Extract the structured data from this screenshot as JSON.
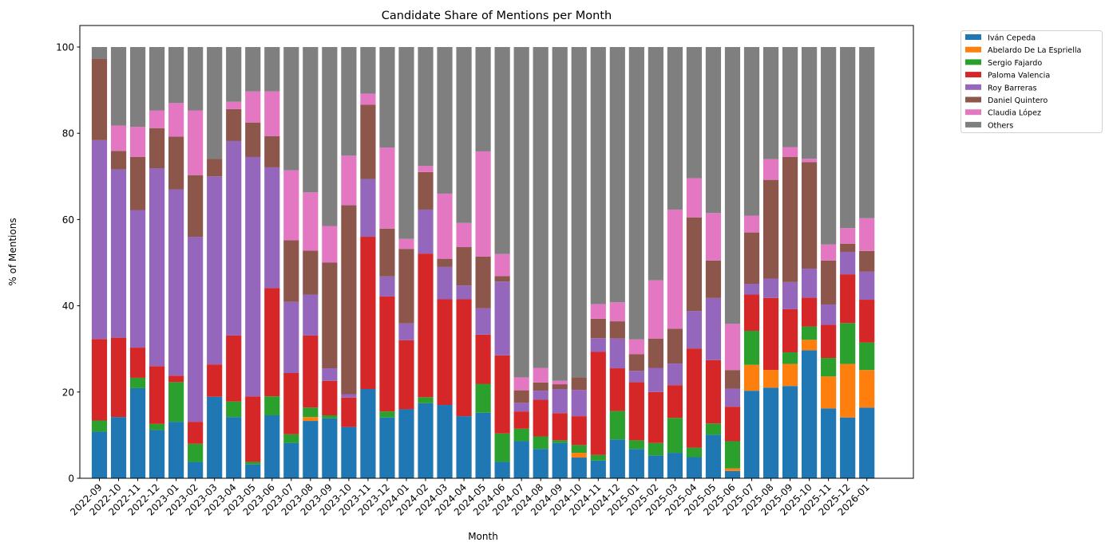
{
  "chart_data": {
    "type": "bar",
    "stacked": true,
    "title": "Candidate Share of Mentions per Month",
    "xlabel": "Month",
    "ylabel": "% of Mentions",
    "ylim": [
      0,
      105
    ],
    "yticks": [
      0,
      20,
      40,
      60,
      80,
      100
    ],
    "grid": false,
    "legend_position": "outside-top-right",
    "categories": [
      "2022-09",
      "2022-10",
      "2022-11",
      "2022-12",
      "2023-01",
      "2023-02",
      "2023-03",
      "2023-04",
      "2023-05",
      "2023-06",
      "2023-07",
      "2023-08",
      "2023-09",
      "2023-10",
      "2023-11",
      "2023-12",
      "2024-01",
      "2024-02",
      "2024-03",
      "2024-04",
      "2024-05",
      "2024-06",
      "2024-07",
      "2024-08",
      "2024-09",
      "2024-10",
      "2024-11",
      "2024-12",
      "2025-01",
      "2025-02",
      "2025-03",
      "2025-04",
      "2025-05",
      "2025-06",
      "2025-07",
      "2025-08",
      "2025-09",
      "2025-10",
      "2025-11",
      "2025-12",
      "2026-01"
    ],
    "series": [
      {
        "name": "Iván Cepeda",
        "color": "#1f77b4",
        "values": [
          10.8,
          14.2,
          20.9,
          11.2,
          13.1,
          3.8,
          18.9,
          14.2,
          3.2,
          14.6,
          8.2,
          13.3,
          13.9,
          11.9,
          20.7,
          14.1,
          16.0,
          17.4,
          17.0,
          14.4,
          15.2,
          3.8,
          8.6,
          6.8,
          8.2,
          4.8,
          4.1,
          9.0,
          6.8,
          5.3,
          5.9,
          4.9,
          10.1,
          1.7,
          20.3,
          21.0,
          21.4,
          29.7,
          16.2,
          14.1,
          16.4
        ]
      },
      {
        "name": "Abelardo De La Espriella",
        "color": "#ff7f0e",
        "values": [
          0,
          0,
          0,
          0,
          0,
          0,
          0,
          0,
          0,
          0,
          0,
          0.9,
          0,
          0,
          0,
          0,
          0,
          0,
          0,
          0,
          0,
          0,
          0,
          0,
          0,
          1.1,
          0,
          0,
          0,
          0,
          0,
          0,
          0,
          0.6,
          6.0,
          4.1,
          5.1,
          2.4,
          7.4,
          12.4,
          8.7
        ]
      },
      {
        "name": "Sergio Fajardo",
        "color": "#2ca02c",
        "values": [
          2.6,
          0,
          2.4,
          1.4,
          9.2,
          4.2,
          0,
          3.6,
          0.6,
          4.4,
          2.0,
          2.2,
          0.7,
          0,
          0,
          1.4,
          0,
          1.4,
          0,
          0,
          6.7,
          6.6,
          2.9,
          2.9,
          0.6,
          1.8,
          1.3,
          6.6,
          2.0,
          2.9,
          8.1,
          2.2,
          2.6,
          6.3,
          7.9,
          0,
          2.7,
          3.1,
          4.3,
          9.5,
          6.4
        ]
      },
      {
        "name": "Paloma Valencia",
        "color": "#d62728",
        "values": [
          18.9,
          18.4,
          7.0,
          13.4,
          1.5,
          5.1,
          7.5,
          15.3,
          15.2,
          25.1,
          14.2,
          16.7,
          8.0,
          6.8,
          35.3,
          26.7,
          16.0,
          33.3,
          24.5,
          27.1,
          11.4,
          18.1,
          4.0,
          8.5,
          6.3,
          6.7,
          23.9,
          9.9,
          13.5,
          11.8,
          7.6,
          23.0,
          14.7,
          8.0,
          8.4,
          16.7,
          10.0,
          6.7,
          7.7,
          11.3,
          9.9
        ]
      },
      {
        "name": "Roy Barreras",
        "color": "#9467bd",
        "values": [
          46.1,
          39.0,
          31.9,
          45.9,
          43.2,
          42.9,
          43.6,
          45.1,
          55.5,
          28.0,
          16.5,
          9.5,
          2.9,
          0.8,
          13.4,
          4.6,
          3.9,
          10.2,
          7.5,
          3.2,
          6.1,
          17.1,
          2.0,
          2.1,
          5.6,
          6.1,
          3.2,
          6.9,
          2.6,
          5.6,
          5.0,
          8.7,
          14.4,
          4.2,
          2.5,
          4.5,
          6.3,
          6.7,
          4.7,
          5.2,
          6.5
        ]
      },
      {
        "name": "Daniel Quintero",
        "color": "#8c564b",
        "values": [
          18.9,
          4.3,
          12.3,
          9.3,
          12.2,
          14.3,
          4.1,
          7.4,
          8.0,
          7.2,
          14.3,
          10.2,
          24.5,
          43.8,
          17.2,
          11.1,
          17.3,
          8.7,
          1.9,
          8.9,
          12.0,
          1.3,
          2.9,
          1.9,
          1.1,
          2.9,
          4.5,
          4.0,
          3.9,
          6.8,
          8.1,
          21.7,
          8.7,
          4.3,
          11.9,
          22.9,
          29.0,
          24.7,
          10.2,
          1.9,
          4.8
        ]
      },
      {
        "name": "Claudia López",
        "color": "#e377c2",
        "values": [
          0,
          5.9,
          7.0,
          4.1,
          7.8,
          15.0,
          0,
          1.7,
          7.2,
          10.4,
          16.2,
          13.5,
          8.5,
          11.5,
          2.6,
          18.8,
          2.3,
          1.4,
          15.1,
          5.6,
          24.4,
          5.1,
          3.0,
          3.4,
          0.8,
          0,
          3.4,
          4.4,
          3.4,
          13.5,
          27.6,
          9.1,
          11.0,
          10.7,
          3.9,
          4.8,
          2.3,
          0.8,
          3.7,
          3.6,
          7.6
        ]
      },
      {
        "name": "Others",
        "color": "#7f7f7f",
        "values": [
          2.7,
          18.2,
          18.5,
          14.7,
          13.0,
          14.7,
          25.9,
          12.7,
          10.3,
          10.3,
          28.6,
          33.7,
          41.5,
          25.2,
          10.8,
          23.3,
          44.5,
          27.6,
          34.0,
          40.8,
          24.2,
          48.0,
          76.6,
          74.4,
          77.4,
          76.6,
          59.6,
          59.2,
          67.8,
          54.1,
          37.7,
          30.4,
          38.5,
          64.2,
          39.1,
          26.0,
          23.2,
          25.9,
          45.8,
          42.0,
          39.7
        ]
      }
    ]
  }
}
